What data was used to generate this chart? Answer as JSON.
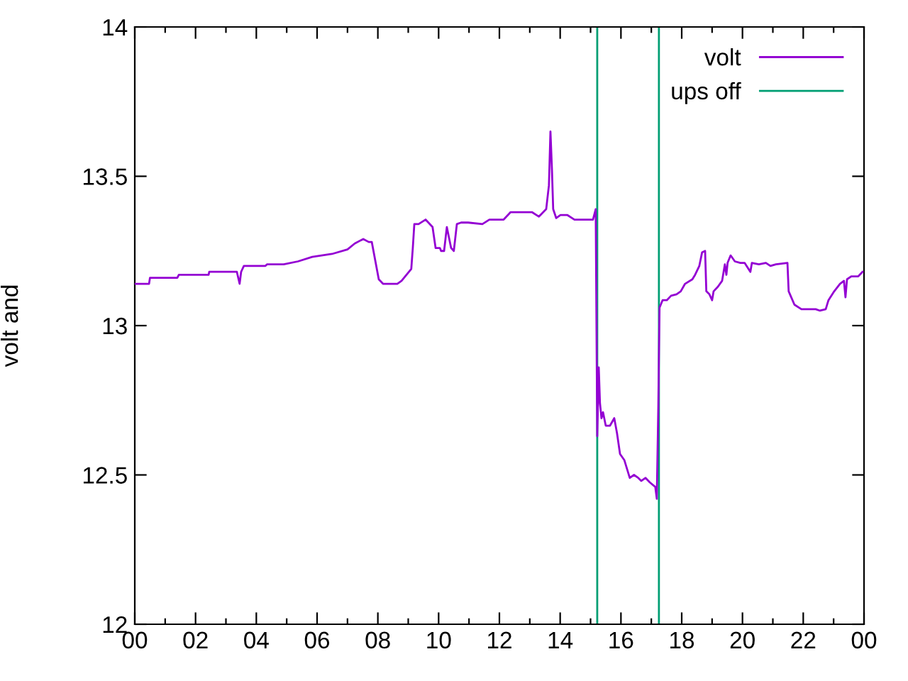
{
  "chart_data": {
    "type": "line",
    "ylabel": "volt and",
    "xlim": [
      0,
      24
    ],
    "ylim": [
      12,
      14
    ],
    "xticks": [
      {
        "value": 0,
        "label": "00"
      },
      {
        "value": 1,
        "label": null
      },
      {
        "value": 2,
        "label": "02"
      },
      {
        "value": 3,
        "label": null
      },
      {
        "value": 4,
        "label": "04"
      },
      {
        "value": 5,
        "label": null
      },
      {
        "value": 6,
        "label": "06"
      },
      {
        "value": 7,
        "label": null
      },
      {
        "value": 8,
        "label": "08"
      },
      {
        "value": 9,
        "label": null
      },
      {
        "value": 10,
        "label": "10"
      },
      {
        "value": 11,
        "label": null
      },
      {
        "value": 12,
        "label": "12"
      },
      {
        "value": 13,
        "label": null
      },
      {
        "value": 14,
        "label": "14"
      },
      {
        "value": 15,
        "label": null
      },
      {
        "value": 16,
        "label": "16"
      },
      {
        "value": 17,
        "label": null
      },
      {
        "value": 18,
        "label": "18"
      },
      {
        "value": 19,
        "label": null
      },
      {
        "value": 20,
        "label": "20"
      },
      {
        "value": 21,
        "label": null
      },
      {
        "value": 22,
        "label": "22"
      },
      {
        "value": 23,
        "label": null
      },
      {
        "value": 24,
        "label": "00"
      }
    ],
    "yticks": [
      12,
      12.5,
      13,
      13.5,
      14
    ],
    "grid": false,
    "legend": "top right",
    "marker": "none",
    "line_style": "solid",
    "series": [
      {
        "name": "volt",
        "color": "#9400d3",
        "x": [
          0,
          0.47,
          0.5,
          1.4,
          1.45,
          2.43,
          2.45,
          3.36,
          3.45,
          3.5,
          3.59,
          4.3,
          4.35,
          4.9,
          5.37,
          5.84,
          6.49,
          7.0,
          7.24,
          7.52,
          7.7,
          7.8,
          8.03,
          8.17,
          8.64,
          8.78,
          9.1,
          9.15,
          9.2,
          9.34,
          9.57,
          9.8,
          9.9,
          10.04,
          10.08,
          10.18,
          10.27,
          10.41,
          10.5,
          10.6,
          10.74,
          10.97,
          11.44,
          11.67,
          11.9,
          12.14,
          12.37,
          13.07,
          13.3,
          13.54,
          13.63,
          13.68,
          13.73,
          13.77,
          13.87,
          14.01,
          14.24,
          14.47,
          14.71,
          15.08,
          15.17,
          15.22,
          15.27,
          15.31,
          15.36,
          15.41,
          15.5,
          15.64,
          15.78,
          15.87,
          15.97,
          16.11,
          16.29,
          16.43,
          16.57,
          16.67,
          16.81,
          16.95,
          17.13,
          17.18,
          17.23,
          17.27,
          17.37,
          17.51,
          17.65,
          17.83,
          17.97,
          18.11,
          18.35,
          18.44,
          18.58,
          18.67,
          18.77,
          18.81,
          18.91,
          19.0,
          19.05,
          19.19,
          19.33,
          19.42,
          19.47,
          19.51,
          19.61,
          19.75,
          19.93,
          20.07,
          20.26,
          20.31,
          20.54,
          20.77,
          20.92,
          21.1,
          21.48,
          21.52,
          21.71,
          21.94,
          22.41,
          22.55,
          22.74,
          22.83,
          23.02,
          23.21,
          23.34,
          23.39,
          23.44,
          23.58,
          23.81,
          23.95
        ],
        "values": [
          13.14,
          13.14,
          13.16,
          13.16,
          13.17,
          13.17,
          13.18,
          13.18,
          13.14,
          13.18,
          13.2,
          13.2,
          13.205,
          13.205,
          13.215,
          13.23,
          13.24,
          13.255,
          13.275,
          13.29,
          13.28,
          13.28,
          13.155,
          13.14,
          13.14,
          13.15,
          13.19,
          13.26,
          13.34,
          13.34,
          13.355,
          13.33,
          13.26,
          13.26,
          13.25,
          13.25,
          13.33,
          13.26,
          13.25,
          13.34,
          13.345,
          13.345,
          13.34,
          13.355,
          13.355,
          13.355,
          13.38,
          13.38,
          13.365,
          13.39,
          13.47,
          13.65,
          13.52,
          13.39,
          13.36,
          13.37,
          13.37,
          13.355,
          13.355,
          13.355,
          13.39,
          12.63,
          12.86,
          12.74,
          12.69,
          12.71,
          12.665,
          12.665,
          12.69,
          12.64,
          12.57,
          12.55,
          12.49,
          12.5,
          12.49,
          12.48,
          12.49,
          12.475,
          12.46,
          12.42,
          12.73,
          13.06,
          13.085,
          13.085,
          13.1,
          13.105,
          13.115,
          13.14,
          13.155,
          13.17,
          13.2,
          13.245,
          13.25,
          13.115,
          13.105,
          13.085,
          13.115,
          13.13,
          13.15,
          13.205,
          13.17,
          13.21,
          13.235,
          13.215,
          13.21,
          13.21,
          13.18,
          13.21,
          13.205,
          13.21,
          13.2,
          13.205,
          13.21,
          13.115,
          13.07,
          13.055,
          13.055,
          13.05,
          13.055,
          13.085,
          13.115,
          13.14,
          13.15,
          13.095,
          13.155,
          13.165,
          13.165,
          13.18
        ]
      },
      {
        "name": "ups off",
        "color": "#009e73",
        "x": [
          15.22,
          15.22,
          16.2,
          17.25,
          17.25
        ],
        "values": [
          12,
          14,
          null,
          14,
          12
        ]
      }
    ]
  }
}
